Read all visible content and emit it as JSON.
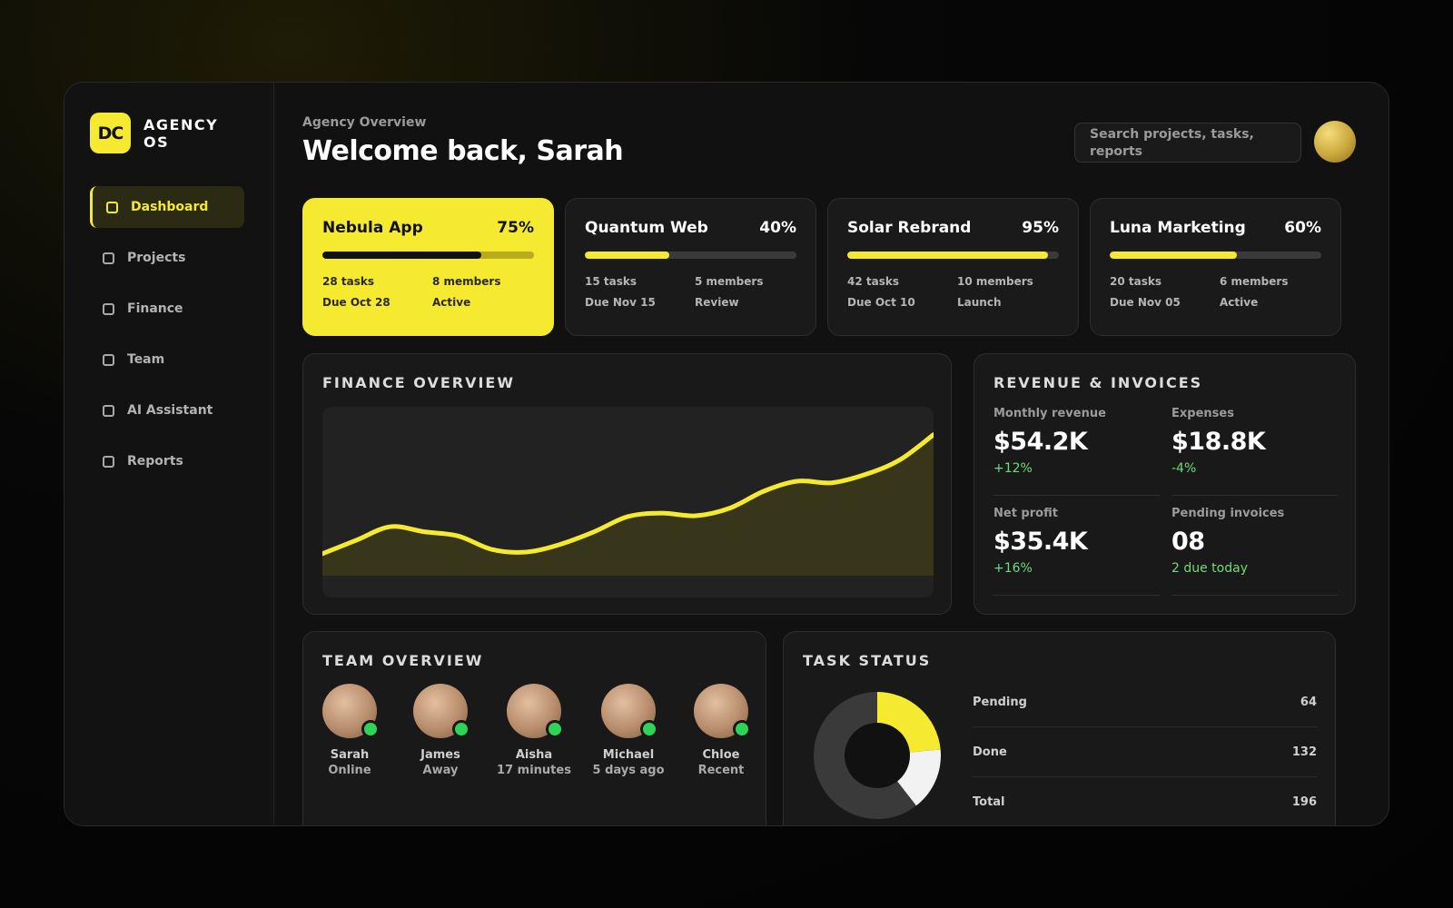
{
  "brand": {
    "initials": "DC",
    "name": "AGENCY\nOS"
  },
  "nav": [
    {
      "label": "Dashboard",
      "active": true
    },
    {
      "label": "Projects"
    },
    {
      "label": "Finance"
    },
    {
      "label": "Team"
    },
    {
      "label": "AI Assistant"
    },
    {
      "label": "Reports"
    }
  ],
  "header": {
    "subtitle": "Agency Overview",
    "title": "Welcome back, Sarah",
    "search_placeholder": "Search projects, tasks, reports"
  },
  "projects": [
    {
      "name": "Nebula App",
      "percent_label": "75%",
      "progress": 0.75,
      "tasks": "28 tasks",
      "members": "8 members",
      "due": "Due Oct 28",
      "status": "Active"
    },
    {
      "name": "Quantum Web",
      "percent_label": "40%",
      "progress": 0.4,
      "tasks": "15 tasks",
      "members": "5 members",
      "due": "Due Nov 15",
      "status": "Review"
    },
    {
      "name": "Solar Rebrand",
      "percent_label": "95%",
      "progress": 0.95,
      "tasks": "42 tasks",
      "members": "10 members",
      "due": "Due Oct 10",
      "status": "Launch"
    },
    {
      "name": "Luna Marketing",
      "percent_label": "60%",
      "progress": 0.6,
      "tasks": "20 tasks",
      "members": "6 members",
      "due": "Due Nov 05",
      "status": "Active"
    }
  ],
  "finance": {
    "title": "FINANCE OVERVIEW"
  },
  "chart_data": {
    "type": "area",
    "values": [
      0.26,
      0.42,
      0.58,
      0.52,
      0.47,
      0.31,
      0.28,
      0.37,
      0.52,
      0.7,
      0.74,
      0.71,
      0.8,
      1.0,
      1.12,
      1.1,
      1.2,
      1.37,
      1.67
    ],
    "ylim": [
      0,
      2
    ],
    "grid": false
  },
  "revenue": {
    "title": "REVENUE & INVOICES",
    "metrics": [
      {
        "label": "Monthly revenue",
        "value": "$54.2K",
        "delta": "+12%"
      },
      {
        "label": "Expenses",
        "value": "$18.8K",
        "delta": "-4%"
      },
      {
        "label": "Net profit",
        "value": "$35.4K",
        "delta": "+16%"
      },
      {
        "label": "Pending invoices",
        "value": "08",
        "delta": "2 due today"
      }
    ]
  },
  "team": {
    "title": "TEAM OVERVIEW",
    "members": [
      {
        "name": "Sarah",
        "status": "Online"
      },
      {
        "name": "James",
        "status": "Away"
      },
      {
        "name": "Aisha",
        "status": "17 minutes"
      },
      {
        "name": "Michael",
        "status": "5 days ago"
      },
      {
        "name": "Chloe",
        "status": "Recent"
      }
    ]
  },
  "tasks": {
    "title": "TASK STATUS",
    "rows": [
      {
        "label": "Pending",
        "value": "64"
      },
      {
        "label": "Done",
        "value": "132"
      },
      {
        "label": "Total",
        "value": "196"
      }
    ],
    "pending": 64,
    "done": 132,
    "total": 196
  },
  "colors": {
    "accent": "#f5ea2f",
    "background": "#111111",
    "positive": "#6fdc7a",
    "online": "#2fd35a"
  }
}
